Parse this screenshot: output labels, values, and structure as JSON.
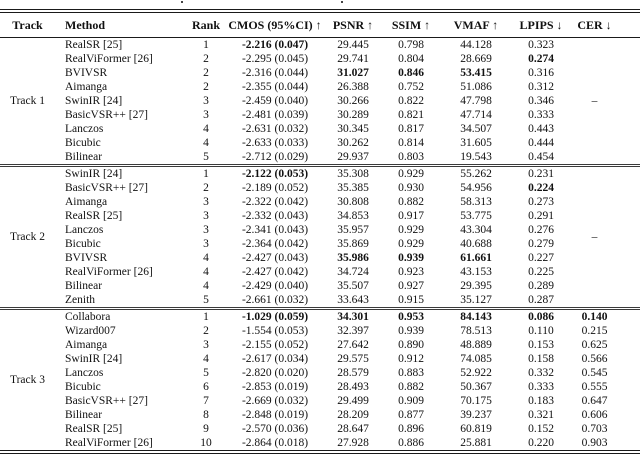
{
  "table": {
    "columns": [
      {
        "key": "track",
        "label": "Track"
      },
      {
        "key": "method",
        "label": "Method"
      },
      {
        "key": "rank",
        "label": "Rank"
      },
      {
        "key": "cmos",
        "label": "CMOS (95%CI) ↑"
      },
      {
        "key": "psnr",
        "label": "PSNR ↑"
      },
      {
        "key": "ssim",
        "label": "SSIM ↑"
      },
      {
        "key": "vmaf",
        "label": "VMAF ↑"
      },
      {
        "key": "lpips",
        "label": "LPIPS ↓"
      },
      {
        "key": "cer",
        "label": "CER ↓"
      }
    ],
    "sections": [
      {
        "track_label": "Track 1",
        "cer_shared": "–",
        "rows": [
          {
            "method": "RealSR [25]",
            "rank": "1",
            "cmos": "-2.216 (0.047)",
            "psnr": "29.445",
            "ssim": "0.798",
            "vmaf": "44.128",
            "lpips": "0.323",
            "bold": [
              "cmos"
            ]
          },
          {
            "method": "RealViFormer [26]",
            "rank": "2",
            "cmos": "-2.295 (0.045)",
            "psnr": "29.741",
            "ssim": "0.804",
            "vmaf": "28.669",
            "lpips": "0.274",
            "bold": [
              "lpips"
            ]
          },
          {
            "method": "BVIVSR",
            "rank": "2",
            "cmos": "-2.316 (0.044)",
            "psnr": "31.027",
            "ssim": "0.846",
            "vmaf": "53.415",
            "lpips": "0.316",
            "bold": [
              "psnr",
              "ssim",
              "vmaf"
            ]
          },
          {
            "method": "Aimanga",
            "rank": "2",
            "cmos": "-2.355 (0.044)",
            "psnr": "26.388",
            "ssim": "0.752",
            "vmaf": "51.086",
            "lpips": "0.312",
            "bold": []
          },
          {
            "method": "SwinIR [24]",
            "rank": "3",
            "cmos": "-2.459 (0.040)",
            "psnr": "30.266",
            "ssim": "0.822",
            "vmaf": "47.798",
            "lpips": "0.346",
            "bold": []
          },
          {
            "method": "BasicVSR++ [27]",
            "rank": "3",
            "cmos": "-2.481 (0.039)",
            "psnr": "30.289",
            "ssim": "0.821",
            "vmaf": "47.714",
            "lpips": "0.333",
            "bold": []
          },
          {
            "method": "Lanczos",
            "rank": "4",
            "cmos": "-2.631 (0.032)",
            "psnr": "30.345",
            "ssim": "0.817",
            "vmaf": "34.507",
            "lpips": "0.443",
            "bold": []
          },
          {
            "method": "Bicubic",
            "rank": "4",
            "cmos": "-2.633 (0.033)",
            "psnr": "30.262",
            "ssim": "0.814",
            "vmaf": "31.605",
            "lpips": "0.444",
            "bold": []
          },
          {
            "method": "Bilinear",
            "rank": "5",
            "cmos": "-2.712 (0.029)",
            "psnr": "29.937",
            "ssim": "0.803",
            "vmaf": "19.543",
            "lpips": "0.454",
            "bold": []
          }
        ]
      },
      {
        "track_label": "Track 2",
        "cer_shared": "–",
        "rows": [
          {
            "method": "SwinIR [24]",
            "rank": "1",
            "cmos": "-2.122 (0.053)",
            "psnr": "35.308",
            "ssim": "0.929",
            "vmaf": "55.262",
            "lpips": "0.231",
            "bold": [
              "cmos"
            ]
          },
          {
            "method": "BasicVSR++ [27]",
            "rank": "2",
            "cmos": "-2.189 (0.052)",
            "psnr": "35.385",
            "ssim": "0.930",
            "vmaf": "54.956",
            "lpips": "0.224",
            "bold": [
              "lpips"
            ]
          },
          {
            "method": "Aimanga",
            "rank": "3",
            "cmos": "-2.322 (0.042)",
            "psnr": "30.808",
            "ssim": "0.882",
            "vmaf": "58.313",
            "lpips": "0.273",
            "bold": []
          },
          {
            "method": "RealSR [25]",
            "rank": "3",
            "cmos": "-2.332 (0.043)",
            "psnr": "34.853",
            "ssim": "0.917",
            "vmaf": "53.775",
            "lpips": "0.291",
            "bold": []
          },
          {
            "method": "Lanczos",
            "rank": "3",
            "cmos": "-2.341 (0.043)",
            "psnr": "35.957",
            "ssim": "0.929",
            "vmaf": "43.304",
            "lpips": "0.276",
            "bold": []
          },
          {
            "method": "Bicubic",
            "rank": "3",
            "cmos": "-2.364 (0.042)",
            "psnr": "35.869",
            "ssim": "0.929",
            "vmaf": "40.688",
            "lpips": "0.279",
            "bold": []
          },
          {
            "method": "BVIVSR",
            "rank": "4",
            "cmos": "-2.427 (0.043)",
            "psnr": "35.986",
            "ssim": "0.939",
            "vmaf": "61.661",
            "lpips": "0.227",
            "bold": [
              "psnr",
              "ssim",
              "vmaf"
            ]
          },
          {
            "method": "RealViFormer [26]",
            "rank": "4",
            "cmos": "-2.427 (0.042)",
            "psnr": "34.724",
            "ssim": "0.923",
            "vmaf": "43.153",
            "lpips": "0.225",
            "bold": []
          },
          {
            "method": "Bilinear",
            "rank": "4",
            "cmos": "-2.429 (0.040)",
            "psnr": "35.507",
            "ssim": "0.927",
            "vmaf": "29.395",
            "lpips": "0.289",
            "bold": []
          },
          {
            "method": "Zenith",
            "rank": "5",
            "cmos": "-2.661 (0.032)",
            "psnr": "33.643",
            "ssim": "0.915",
            "vmaf": "35.127",
            "lpips": "0.287",
            "bold": []
          }
        ]
      },
      {
        "track_label": "Track 3",
        "cer_shared": null,
        "rows": [
          {
            "method": "Collabora",
            "rank": "1",
            "cmos": "-1.029 (0.059)",
            "psnr": "34.301",
            "ssim": "0.953",
            "vmaf": "84.143",
            "lpips": "0.086",
            "cer": "0.140",
            "bold": [
              "cmos",
              "psnr",
              "ssim",
              "vmaf",
              "lpips",
              "cer"
            ]
          },
          {
            "method": "Wizard007",
            "rank": "2",
            "cmos": "-1.554 (0.053)",
            "psnr": "32.397",
            "ssim": "0.939",
            "vmaf": "78.513",
            "lpips": "0.110",
            "cer": "0.215",
            "bold": []
          },
          {
            "method": "Aimanga",
            "rank": "3",
            "cmos": "-2.155 (0.052)",
            "psnr": "27.642",
            "ssim": "0.890",
            "vmaf": "48.889",
            "lpips": "0.153",
            "cer": "0.625",
            "bold": []
          },
          {
            "method": "SwinIR [24]",
            "rank": "4",
            "cmos": "-2.617 (0.034)",
            "psnr": "29.575",
            "ssim": "0.912",
            "vmaf": "74.085",
            "lpips": "0.158",
            "cer": "0.566",
            "bold": []
          },
          {
            "method": "Lanczos",
            "rank": "5",
            "cmos": "-2.820 (0.020)",
            "psnr": "28.579",
            "ssim": "0.883",
            "vmaf": "52.922",
            "lpips": "0.332",
            "cer": "0.545",
            "bold": []
          },
          {
            "method": "Bicubic",
            "rank": "6",
            "cmos": "-2.853 (0.019)",
            "psnr": "28.493",
            "ssim": "0.882",
            "vmaf": "50.367",
            "lpips": "0.333",
            "cer": "0.555",
            "bold": []
          },
          {
            "method": "BasicVSR++ [27]",
            "rank": "7",
            "cmos": "-2.669 (0.032)",
            "psnr": "29.499",
            "ssim": "0.909",
            "vmaf": "70.175",
            "lpips": "0.183",
            "cer": "0.647",
            "bold": []
          },
          {
            "method": "Bilinear",
            "rank": "8",
            "cmos": "-2.848 (0.019)",
            "psnr": "28.209",
            "ssim": "0.877",
            "vmaf": "39.237",
            "lpips": "0.321",
            "cer": "0.606",
            "bold": []
          },
          {
            "method": "RealSR [25]",
            "rank": "9",
            "cmos": "-2.570 (0.036)",
            "psnr": "28.647",
            "ssim": "0.896",
            "vmaf": "60.819",
            "lpips": "0.152",
            "cer": "0.703",
            "bold": []
          },
          {
            "method": "RealViFormer [26]",
            "rank": "10",
            "cmos": "-2.864 (0.018)",
            "psnr": "27.928",
            "ssim": "0.886",
            "vmaf": "25.881",
            "lpips": "0.220",
            "cer": "0.903",
            "bold": []
          }
        ]
      }
    ]
  }
}
